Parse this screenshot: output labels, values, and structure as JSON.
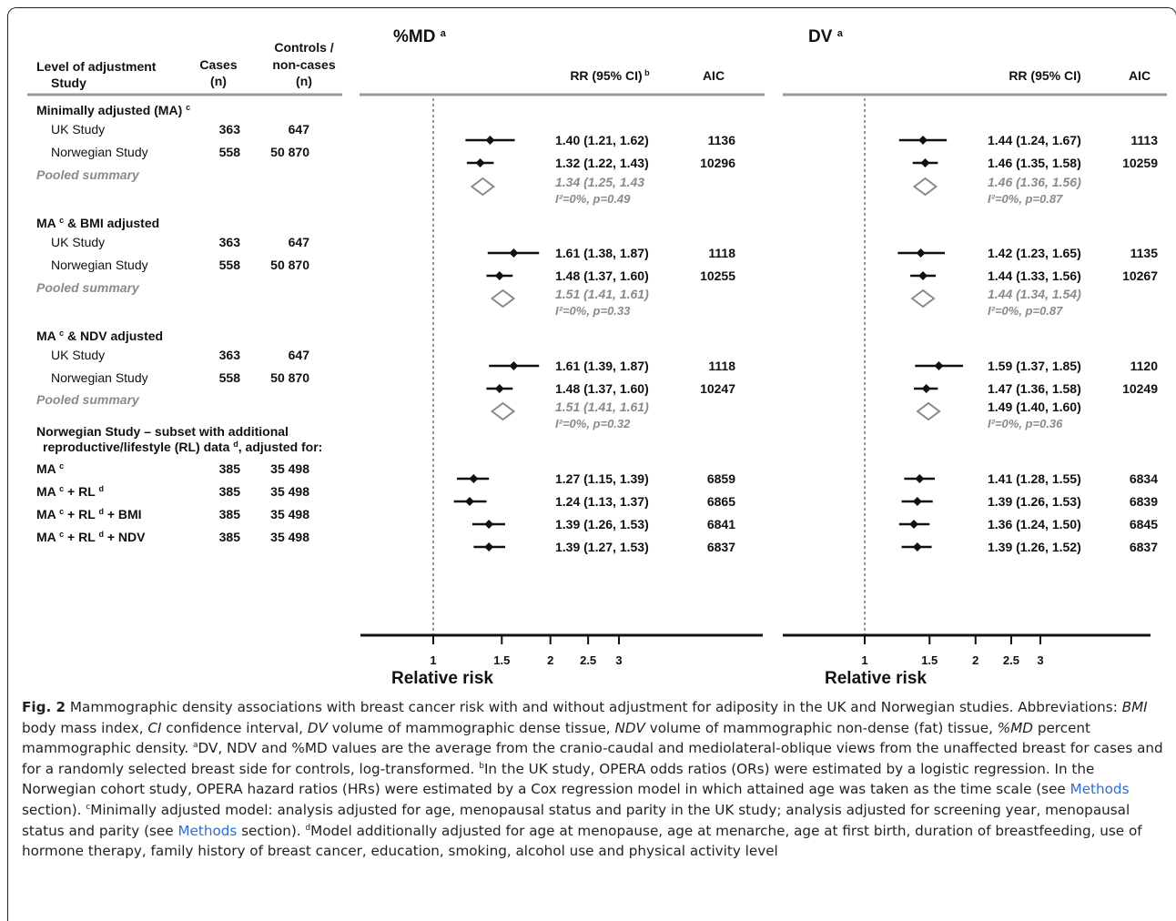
{
  "table": {
    "header": {
      "level": "Level of adjustment",
      "study": "Study",
      "cases": "Cases",
      "cases_unit": "(n)",
      "controls": "Controls /",
      "controls2": "non-cases",
      "controls_unit": "(n)"
    },
    "groups": [
      {
        "label": "Minimally adjusted (MA)",
        "label_sup": "c"
      },
      {
        "label": "MA",
        "label_sup": "c",
        "label_suffix": " & BMI adjusted"
      },
      {
        "label": "MA",
        "label_sup": "c",
        "label_suffix": " & NDV adjusted"
      },
      {
        "label": "Norwegian Study – subset with additional",
        "label2": "reproductive/lifestyle (RL) data",
        "label2_sup": "d",
        "label2_suffix": ", adjusted for:"
      }
    ],
    "rows": [
      {
        "label": "UK Study",
        "cases": "363",
        "controls": "647"
      },
      {
        "label": "Norwegian Study",
        "cases": "558",
        "controls": "50 870"
      },
      {
        "label": "Pooled summary"
      },
      {
        "label": "UK Study",
        "cases": "363",
        "controls": "647"
      },
      {
        "label": "Norwegian Study",
        "cases": "558",
        "controls": "50 870"
      },
      {
        "label": "Pooled summary"
      },
      {
        "label": "UK Study",
        "cases": "363",
        "controls": "647"
      },
      {
        "label": "Norwegian Study",
        "cases": "558",
        "controls": "50 870"
      },
      {
        "label": "Pooled summary"
      },
      {
        "label": "MA",
        "label_parts": [
          {
            "t": "MA "
          },
          {
            "s": "c"
          }
        ],
        "cases": "385",
        "controls": "35 498"
      },
      {
        "label": "MA + RL",
        "label_parts": [
          {
            "t": "MA "
          },
          {
            "s": "c"
          },
          {
            "t": " + RL "
          },
          {
            "s": "d"
          }
        ],
        "cases": "385",
        "controls": "35 498"
      },
      {
        "label": "MA + RL + BMI",
        "label_parts": [
          {
            "t": "MA "
          },
          {
            "s": "c"
          },
          {
            "t": " + RL "
          },
          {
            "s": "d"
          },
          {
            "t": " + BMI"
          }
        ],
        "cases": "385",
        "controls": "35 498"
      },
      {
        "label": "MA + RL + NDV",
        "label_parts": [
          {
            "t": "MA "
          },
          {
            "s": "c"
          },
          {
            "t": " + RL "
          },
          {
            "s": "d"
          },
          {
            "t": " + NDV"
          }
        ],
        "cases": "385",
        "controls": "35 498"
      }
    ]
  },
  "chart_data": [
    {
      "type": "forest",
      "title": "%MD",
      "title_sup": "a",
      "col_rr": "RR (95% CI)",
      "col_rr_sup": "b",
      "col_aic": "AIC",
      "xlabel": "Relative risk",
      "xscale": "log",
      "xlim": [
        1,
        3
      ],
      "xticks": [
        "1",
        "1.5",
        "2",
        "2.5",
        "3"
      ],
      "reference_line": 1,
      "points": [
        {
          "rr": 1.4,
          "lo": 1.21,
          "hi": 1.62,
          "label": "1.40 (1.21, 1.62)",
          "aic": "1136",
          "type": "study"
        },
        {
          "rr": 1.32,
          "lo": 1.22,
          "hi": 1.43,
          "label": "1.32 (1.22, 1.43)",
          "aic": "10296",
          "type": "study"
        },
        {
          "rr": 1.34,
          "lo": 1.25,
          "hi": 1.43,
          "label": "1.34 (1.25, 1.43",
          "het": "I²=0%, p=0.49",
          "type": "pooled"
        },
        {
          "rr": 1.61,
          "lo": 1.38,
          "hi": 1.87,
          "label": "1.61 (1.38, 1.87)",
          "aic": "1118",
          "type": "study"
        },
        {
          "rr": 1.48,
          "lo": 1.37,
          "hi": 1.6,
          "label": "1.48 (1.37, 1.60)",
          "aic": "10255",
          "type": "study"
        },
        {
          "rr": 1.51,
          "lo": 1.41,
          "hi": 1.61,
          "label": "1.51 (1.41, 1.61)",
          "het": "I²=0%, p=0.33",
          "type": "pooled"
        },
        {
          "rr": 1.61,
          "lo": 1.39,
          "hi": 1.87,
          "label": "1.61 (1.39, 1.87)",
          "aic": "1118",
          "type": "study"
        },
        {
          "rr": 1.48,
          "lo": 1.37,
          "hi": 1.6,
          "label": "1.48 (1.37, 1.60)",
          "aic": "10247",
          "type": "study"
        },
        {
          "rr": 1.51,
          "lo": 1.41,
          "hi": 1.61,
          "label": "1.51 (1.41, 1.61)",
          "het": "I²=0%, p=0.32",
          "type": "pooled"
        },
        {
          "rr": 1.27,
          "lo": 1.15,
          "hi": 1.39,
          "label": "1.27 (1.15, 1.39)",
          "aic": "6859",
          "type": "study"
        },
        {
          "rr": 1.24,
          "lo": 1.13,
          "hi": 1.37,
          "label": "1.24 (1.13, 1.37)",
          "aic": "6865",
          "type": "study"
        },
        {
          "rr": 1.39,
          "lo": 1.26,
          "hi": 1.53,
          "label": "1.39 (1.26, 1.53)",
          "aic": "6841",
          "type": "study"
        },
        {
          "rr": 1.39,
          "lo": 1.27,
          "hi": 1.53,
          "label": "1.39 (1.27, 1.53)",
          "aic": "6837",
          "type": "study"
        }
      ]
    },
    {
      "type": "forest",
      "title": "DV",
      "title_sup": "a",
      "col_rr": "RR (95% CI)",
      "col_aic": "AIC",
      "xlabel": "Relative risk",
      "xscale": "log",
      "xlim": [
        1,
        3
      ],
      "xticks": [
        "1",
        "1.5",
        "2",
        "2.5",
        "3"
      ],
      "reference_line": 1,
      "points": [
        {
          "rr": 1.44,
          "lo": 1.24,
          "hi": 1.67,
          "label": "1.44 (1.24, 1.67)",
          "aic": "1113",
          "type": "study"
        },
        {
          "rr": 1.46,
          "lo": 1.35,
          "hi": 1.58,
          "label": "1.46 (1.35, 1.58)",
          "aic": "10259",
          "type": "study"
        },
        {
          "rr": 1.46,
          "lo": 1.36,
          "hi": 1.56,
          "label": "1.46 (1.36, 1.56)",
          "het": "I²=0%, p=0.87",
          "type": "pooled"
        },
        {
          "rr": 1.42,
          "lo": 1.23,
          "hi": 1.65,
          "label": "1.42 (1.23, 1.65)",
          "aic": "1135",
          "type": "study"
        },
        {
          "rr": 1.44,
          "lo": 1.33,
          "hi": 1.56,
          "label": "1.44 (1.33, 1.56)",
          "aic": "10267",
          "type": "study"
        },
        {
          "rr": 1.44,
          "lo": 1.34,
          "hi": 1.54,
          "label": "1.44 (1.34, 1.54)",
          "het": "I²=0%, p=0.87",
          "type": "pooled"
        },
        {
          "rr": 1.59,
          "lo": 1.37,
          "hi": 1.85,
          "label": "1.59 (1.37, 1.85)",
          "aic": "1120",
          "type": "study"
        },
        {
          "rr": 1.47,
          "lo": 1.36,
          "hi": 1.58,
          "label": "1.47 (1.36, 1.58)",
          "aic": "10249",
          "type": "study"
        },
        {
          "rr": 1.49,
          "lo": 1.4,
          "hi": 1.6,
          "label": "1.49 (1.40, 1.60)",
          "het": "I²=0%, p=0.36",
          "type": "pooled",
          "label_bold": true
        },
        {
          "rr": 1.41,
          "lo": 1.28,
          "hi": 1.55,
          "label": "1.41 (1.28, 1.55)",
          "aic": "6834",
          "type": "study"
        },
        {
          "rr": 1.39,
          "lo": 1.26,
          "hi": 1.53,
          "label": "1.39 (1.26, 1.53)",
          "aic": "6839",
          "type": "study"
        },
        {
          "rr": 1.36,
          "lo": 1.24,
          "hi": 1.5,
          "label": "1.36 (1.24, 1.50)",
          "aic": "6845",
          "type": "study"
        },
        {
          "rr": 1.39,
          "lo": 1.26,
          "hi": 1.52,
          "label": "1.39 (1.26, 1.52)",
          "aic": "6837",
          "type": "study"
        }
      ]
    }
  ],
  "caption": {
    "fig": "Fig. 2",
    "s1": " Mammographic density associations with breast cancer risk with and without adjustment for adiposity in the UK and Norwegian studies. Abbreviations: ",
    "bmi": "BMI",
    "s2": " body mass index, ",
    "ci": "CI",
    "s3": " confidence interval, ",
    "dv": "DV",
    "s4": " volume of mammographic dense tissue, ",
    "ndv": "NDV",
    "s5": " volume of mammographic non-dense (fat) tissue, ",
    "pmd": "%MD",
    "s6": " percent mammographic density. ",
    "sa": "a",
    "s7": "DV, NDV and %MD values are the average from the cranio-caudal and mediolateral-oblique views from the unaffected breast for cases and for a randomly selected breast side for controls, log-transformed. ",
    "sb": "b",
    "s8": "In the UK study, OPERA odds ratios (ORs) were estimated by a logistic regression. In the Norwegian cohort study, OPERA hazard ratios (HRs) were estimated by a Cox regression model in which attained age was taken as the time scale (see ",
    "link1": "Methods",
    "s9": " section). ",
    "sc": "c",
    "s10": "Minimally adjusted model: analysis adjusted for age, menopausal status and parity in the UK study; analysis adjusted for screening year, menopausal status and parity (see ",
    "link2": "Methods",
    "s11": " section). ",
    "sd": "d",
    "s12": "Model additionally adjusted for age at menopause, age at menarche, age at first birth, duration of breastfeeding, use of hormone therapy, family history of breast cancer, education, smoking, alcohol use and physical activity level"
  }
}
